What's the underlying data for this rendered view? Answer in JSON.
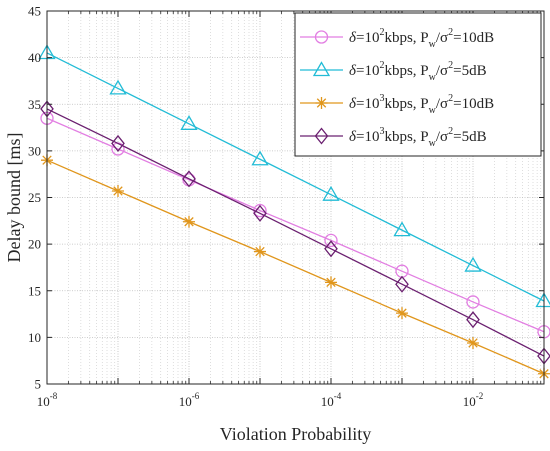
{
  "chart_data": {
    "type": "line",
    "xlabel": "Violation Probability",
    "ylabel": "Delay bound [ms]",
    "xscale": "log",
    "xlim": [
      1e-08,
      0.1
    ],
    "ylim": [
      5,
      45
    ],
    "grid": true,
    "legend_position": "top-right",
    "y_ticks": [
      "5",
      "10",
      "15",
      "20",
      "25",
      "30",
      "35",
      "40",
      "45"
    ],
    "x_ticks": [
      {
        "base": "10",
        "exp": "-8",
        "value": 1e-08
      },
      {
        "base": "10",
        "exp": "-6",
        "value": 1e-06
      },
      {
        "base": "10",
        "exp": "-4",
        "value": 0.0001
      },
      {
        "base": "10",
        "exp": "-2",
        "value": 0.01
      }
    ],
    "x": [
      1e-08,
      1e-07,
      1e-06,
      1e-05,
      0.0001,
      0.001,
      0.01,
      0.1
    ],
    "series": [
      {
        "name_delta": "δ",
        "name_eq1": "=10",
        "name_exp": "2",
        "name_unit": "kbps, P",
        "name_sub": "w",
        "name_slash": "/σ",
        "name_sigexp": "2",
        "name_tail": "=10dB",
        "color": "#e27ee2",
        "marker": "circle",
        "values": [
          33.5,
          30.2,
          26.9,
          23.6,
          20.4,
          17.1,
          13.8,
          10.6
        ]
      },
      {
        "name_delta": "δ",
        "name_eq1": "=10",
        "name_exp": "2",
        "name_unit": "kbps, P",
        "name_sub": "w",
        "name_slash": "/σ",
        "name_sigexp": "2",
        "name_tail": "=5dB",
        "color": "#22bcd6",
        "marker": "triangle",
        "values": [
          40.5,
          36.7,
          32.9,
          29.1,
          25.3,
          21.5,
          17.7,
          13.9
        ]
      },
      {
        "name_delta": "δ",
        "name_eq1": "=10",
        "name_exp": "3",
        "name_unit": "kbps, P",
        "name_sub": "w",
        "name_slash": "/σ",
        "name_sigexp": "2",
        "name_tail": "=10dB",
        "color": "#e0961c",
        "marker": "asterisk",
        "values": [
          29.0,
          25.7,
          22.4,
          19.2,
          15.9,
          12.6,
          9.4,
          6.1
        ]
      },
      {
        "name_delta": "δ",
        "name_eq1": "=10",
        "name_exp": "3",
        "name_unit": "kbps, P",
        "name_sub": "w",
        "name_slash": "/σ",
        "name_sigexp": "2",
        "name_tail": "=5dB",
        "color": "#6b2070",
        "marker": "diamond",
        "values": [
          34.5,
          30.8,
          27.0,
          23.3,
          19.5,
          15.7,
          11.9,
          8.0
        ]
      }
    ]
  }
}
